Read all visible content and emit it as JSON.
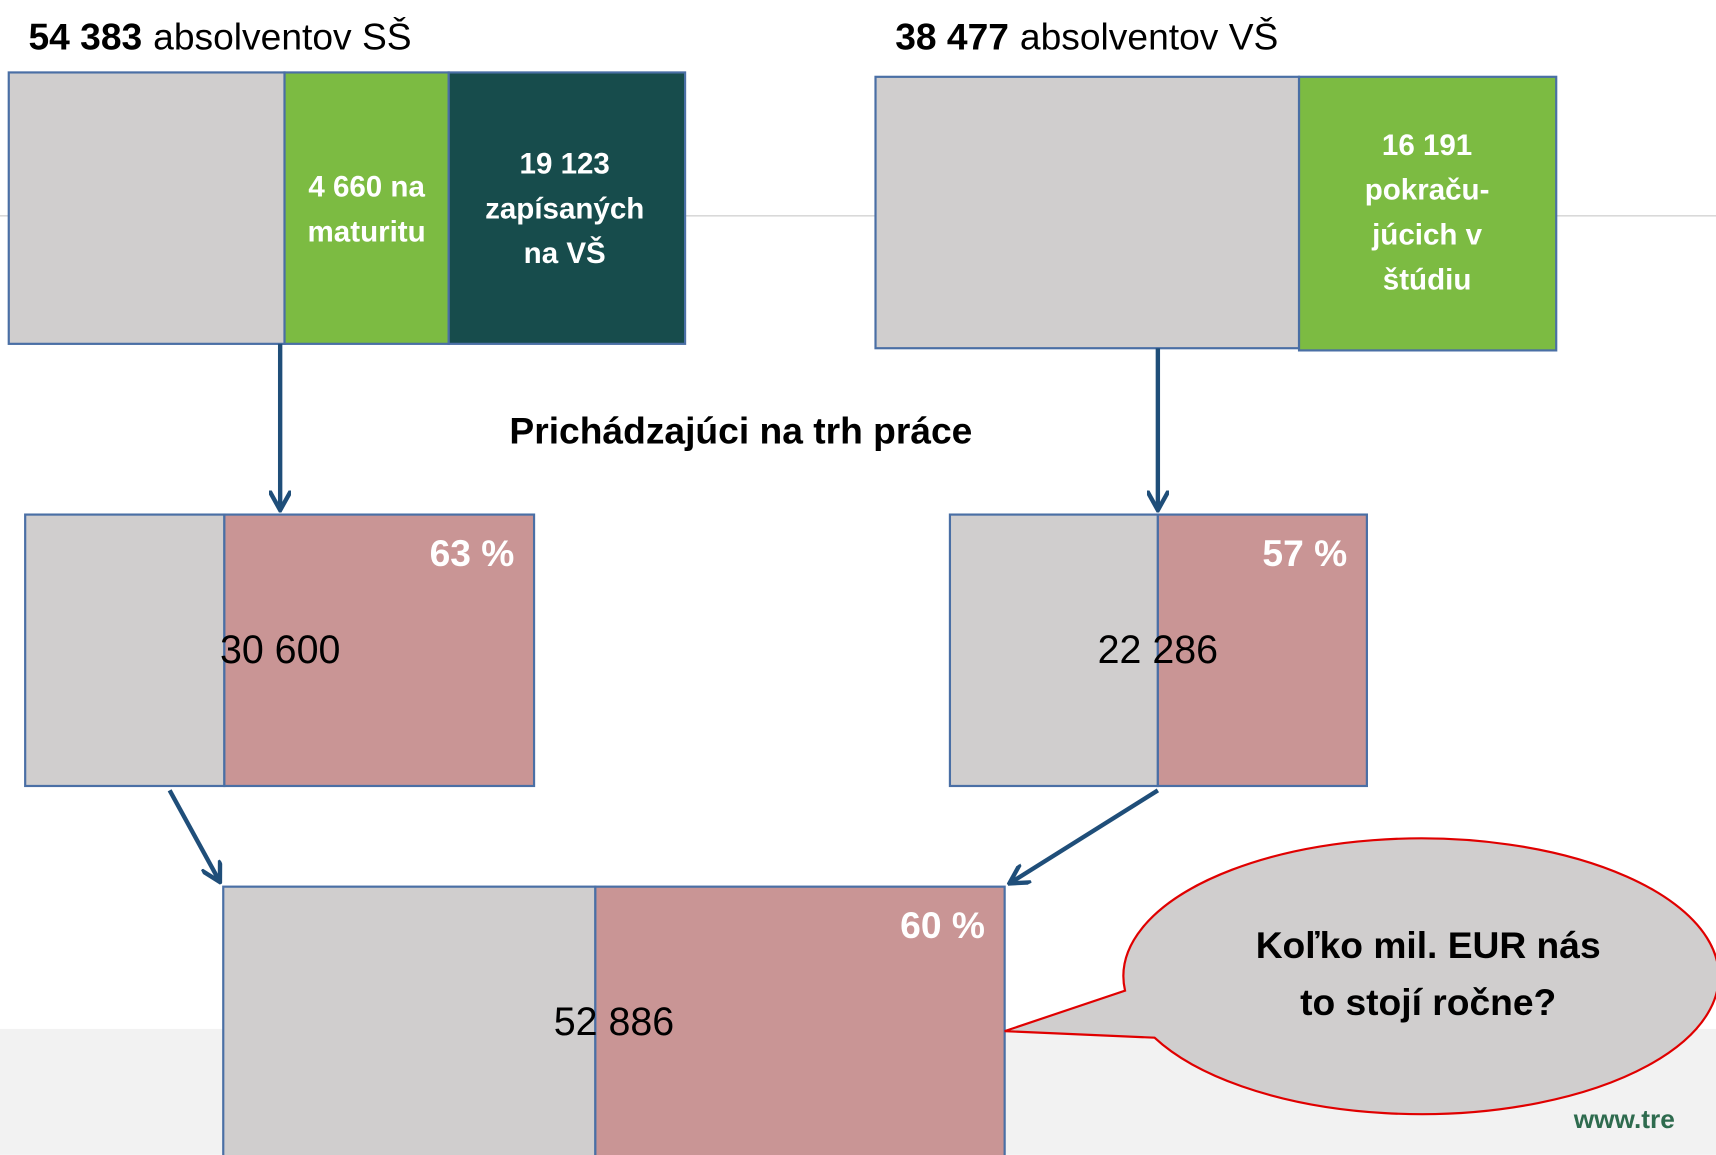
{
  "headings": [
    {
      "number": "54 383",
      "text": "absolventov SŠ"
    },
    {
      "number": "38 477",
      "text": "absolventov VŠ"
    }
  ],
  "top_boxes": [
    {
      "lines": [
        "4 660 na",
        "maturitu"
      ]
    },
    {
      "lines": [
        "19 123",
        "zapísaných",
        "na VŠ"
      ]
    },
    {
      "lines": [
        "16 191",
        "pokraču-",
        "júcich v",
        "štúdiu"
      ]
    }
  ],
  "subtitle": "Prichádzajúci na trh práce",
  "result_boxes": [
    {
      "percent": "63 %",
      "number": "30 600"
    },
    {
      "percent": "57 %",
      "number": "22 286"
    },
    {
      "percent": "60 %",
      "number": "52 886"
    }
  ],
  "callout": {
    "lines": [
      "Koľko mil. EUR nás",
      "to stojí ročne?"
    ]
  },
  "footer": "www.tre"
}
